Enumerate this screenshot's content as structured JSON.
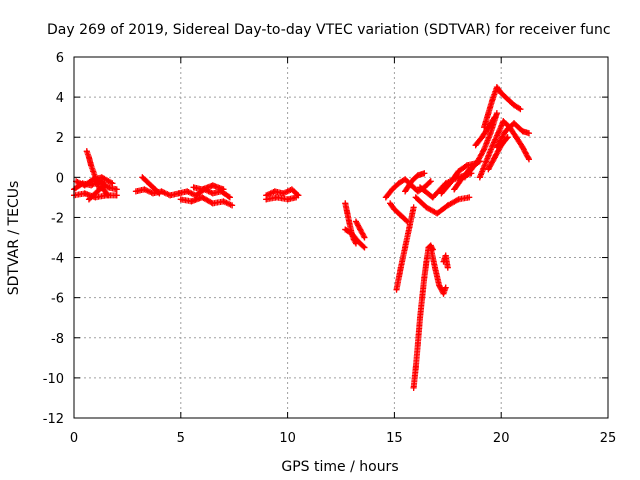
{
  "chart_data": {
    "type": "scatter",
    "title": "Day 269 of 2019, Sidereal Day-to-day VTEC variation (SDTVAR) for receiver func",
    "xlabel": "GPS time / hours",
    "ylabel": "SDTVAR / TECUs",
    "xlim": [
      0,
      25
    ],
    "ylim": [
      -12,
      6
    ],
    "x_ticks": [
      0,
      5,
      10,
      15,
      20,
      25
    ],
    "y_ticks": [
      -12,
      -10,
      -8,
      -6,
      -4,
      -2,
      0,
      2,
      4,
      6
    ],
    "grid": true,
    "marker": "+",
    "color": "#ff0000",
    "tracks": [
      {
        "x": [
          0.0,
          0.4,
          0.8,
          1.2,
          1.6,
          2.0
        ],
        "y": [
          -0.6,
          -0.3,
          -0.4,
          -0.2,
          -0.5,
          -0.6
        ]
      },
      {
        "x": [
          0.0,
          0.5,
          1.0,
          1.5,
          2.0
        ],
        "y": [
          -0.9,
          -0.8,
          -1.0,
          -0.9,
          -0.9
        ]
      },
      {
        "x": [
          0.1,
          0.5,
          0.9,
          1.3,
          1.8
        ],
        "y": [
          -0.2,
          -0.4,
          -0.1,
          0.0,
          -0.3
        ]
      },
      {
        "x": [
          0.6,
          0.7,
          0.8,
          0.9,
          1.0,
          1.1,
          1.2
        ],
        "y": [
          1.3,
          1.0,
          0.6,
          0.3,
          0.0,
          -0.3,
          -0.6
        ]
      },
      {
        "x": [
          0.7,
          1.0,
          1.3,
          1.6
        ],
        "y": [
          -1.1,
          -0.8,
          -0.5,
          -0.9
        ]
      },
      {
        "x": [
          2.9,
          3.3,
          3.7,
          4.1,
          4.5,
          4.9
        ],
        "y": [
          -0.7,
          -0.6,
          -0.8,
          -0.7,
          -0.9,
          -0.8
        ]
      },
      {
        "x": [
          3.2,
          3.4,
          3.6,
          3.8,
          4.0
        ],
        "y": [
          0.0,
          -0.2,
          -0.4,
          -0.6,
          -0.8
        ]
      },
      {
        "x": [
          4.9,
          5.3,
          5.7,
          6.1,
          6.5,
          6.9,
          7.3
        ],
        "y": [
          -0.8,
          -0.7,
          -0.9,
          -0.6,
          -0.8,
          -0.7,
          -1.0
        ]
      },
      {
        "x": [
          5.0,
          5.5,
          6.0,
          6.5,
          7.0,
          7.4
        ],
        "y": [
          -1.1,
          -1.2,
          -1.0,
          -1.3,
          -1.2,
          -1.4
        ]
      },
      {
        "x": [
          5.6,
          6.0,
          6.5,
          7.0
        ],
        "y": [
          -0.5,
          -0.6,
          -0.4,
          -0.6
        ]
      },
      {
        "x": [
          9.0,
          9.4,
          9.8,
          10.2,
          10.5
        ],
        "y": [
          -0.9,
          -0.7,
          -0.8,
          -0.6,
          -0.9
        ]
      },
      {
        "x": [
          9.0,
          9.5,
          10.0,
          10.4
        ],
        "y": [
          -1.1,
          -1.0,
          -1.1,
          -1.0
        ]
      },
      {
        "x": [
          12.7,
          12.8,
          12.9,
          13.0,
          13.1,
          13.2
        ],
        "y": [
          -1.3,
          -1.8,
          -2.3,
          -2.8,
          -3.1,
          -3.3
        ]
      },
      {
        "x": [
          12.7,
          13.0,
          13.3,
          13.6
        ],
        "y": [
          -2.6,
          -2.8,
          -3.2,
          -3.5
        ]
      },
      {
        "x": [
          13.2,
          13.4,
          13.6
        ],
        "y": [
          -2.2,
          -2.6,
          -3.0
        ]
      },
      {
        "x": [
          14.6,
          14.9,
          15.2,
          15.5,
          15.8,
          16.1,
          16.4,
          16.7
        ],
        "y": [
          -1.0,
          -0.6,
          -0.3,
          -0.1,
          -0.4,
          -0.7,
          -0.5,
          -0.2
        ]
      },
      {
        "x": [
          14.8,
          15.0,
          15.3,
          15.6
        ],
        "y": [
          -1.3,
          -1.6,
          -1.9,
          -2.2
        ]
      },
      {
        "x": [
          15.1,
          15.3,
          15.5,
          15.7,
          15.9
        ],
        "y": [
          -5.6,
          -4.5,
          -3.5,
          -2.5,
          -1.5
        ]
      },
      {
        "x": [
          15.5,
          15.8,
          16.1,
          16.4
        ],
        "y": [
          -0.7,
          -0.2,
          0.1,
          0.2
        ]
      },
      {
        "x": [
          15.9,
          16.0,
          16.1,
          16.2,
          16.3,
          16.4,
          16.5,
          16.6,
          16.7,
          16.8
        ],
        "y": [
          -10.5,
          -9.5,
          -8.3,
          -7.0,
          -6.0,
          -5.0,
          -4.2,
          -3.5,
          -3.4,
          -3.6
        ]
      },
      {
        "x": [
          16.7,
          16.9,
          17.1,
          17.3,
          17.4
        ],
        "y": [
          -3.5,
          -4.5,
          -5.4,
          -5.8,
          -5.5
        ]
      },
      {
        "x": [
          17.3,
          17.4,
          17.5
        ],
        "y": [
          -4.2,
          -3.9,
          -4.5
        ]
      },
      {
        "x": [
          16.0,
          16.5,
          17.0,
          17.5,
          18.0,
          18.5
        ],
        "y": [
          -1.0,
          -1.5,
          -1.8,
          -1.4,
          -1.1,
          -1.0
        ]
      },
      {
        "x": [
          16.2,
          16.8,
          17.4,
          18.0,
          18.6
        ],
        "y": [
          -0.5,
          -1.0,
          -0.3,
          0.0,
          0.2
        ]
      },
      {
        "x": [
          17.2,
          17.6,
          18.0,
          18.4,
          18.8
        ],
        "y": [
          -0.8,
          -0.3,
          0.3,
          0.6,
          0.7
        ]
      },
      {
        "x": [
          17.8,
          18.2,
          18.6,
          19.0
        ],
        "y": [
          -0.6,
          0.0,
          0.5,
          0.8
        ]
      },
      {
        "x": [
          18.3,
          18.6,
          18.9,
          19.2,
          19.5,
          19.8
        ],
        "y": [
          0.0,
          0.4,
          0.8,
          1.4,
          2.2,
          3.2
        ]
      },
      {
        "x": [
          18.8,
          19.1,
          19.4,
          19.7
        ],
        "y": [
          1.6,
          2.0,
          2.5,
          3.0
        ]
      },
      {
        "x": [
          19.2,
          19.4,
          19.6,
          19.8,
          20.0,
          20.2,
          20.4,
          20.6,
          20.9
        ],
        "y": [
          2.5,
          3.2,
          3.9,
          4.5,
          4.2,
          4.0,
          3.8,
          3.6,
          3.4
        ]
      },
      {
        "x": [
          19.0,
          19.3,
          19.6,
          19.9,
          20.1,
          20.4,
          20.7,
          21.0,
          21.3
        ],
        "y": [
          0.0,
          0.8,
          1.6,
          2.3,
          2.8,
          2.5,
          2.0,
          1.5,
          0.9
        ]
      },
      {
        "x": [
          19.8,
          20.2,
          20.6,
          21.0,
          21.3
        ],
        "y": [
          1.5,
          2.3,
          2.7,
          2.3,
          2.2
        ]
      },
      {
        "x": [
          19.4,
          19.7,
          20.0,
          20.3
        ],
        "y": [
          0.4,
          1.0,
          1.6,
          2.0
        ]
      }
    ]
  }
}
